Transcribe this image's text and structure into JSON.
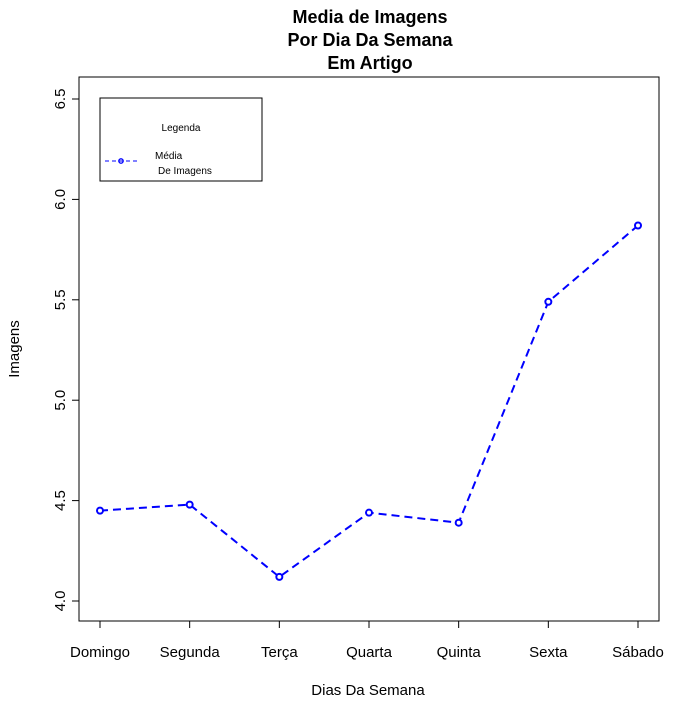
{
  "chart_data": {
    "type": "line",
    "title_lines": [
      "Media de Imagens",
      "Por Dia Da Semana",
      "Em Artigo"
    ],
    "xlabel": "Dias Da Semana",
    "ylabel": "Imagens",
    "categories": [
      "Domingo",
      "Segunda",
      "Terça",
      "Quarta",
      "Quinta",
      "Sexta",
      "Sábado"
    ],
    "series": [
      {
        "name": "Média De Imagens",
        "values": [
          4.45,
          4.48,
          4.12,
          4.44,
          4.39,
          5.49,
          5.87
        ],
        "color": "#0000ff",
        "line_style": "dashed",
        "marker": "open-circle"
      }
    ],
    "ylim": [
      4.0,
      6.5
    ],
    "yticks": [
      "4.0",
      "4.5",
      "5.0",
      "5.5",
      "6.0",
      "6.5"
    ],
    "grid": false,
    "legend": {
      "title": "Legenda",
      "labels": [
        "Média",
        "De Imagens"
      ],
      "placement": "top-left"
    }
  }
}
